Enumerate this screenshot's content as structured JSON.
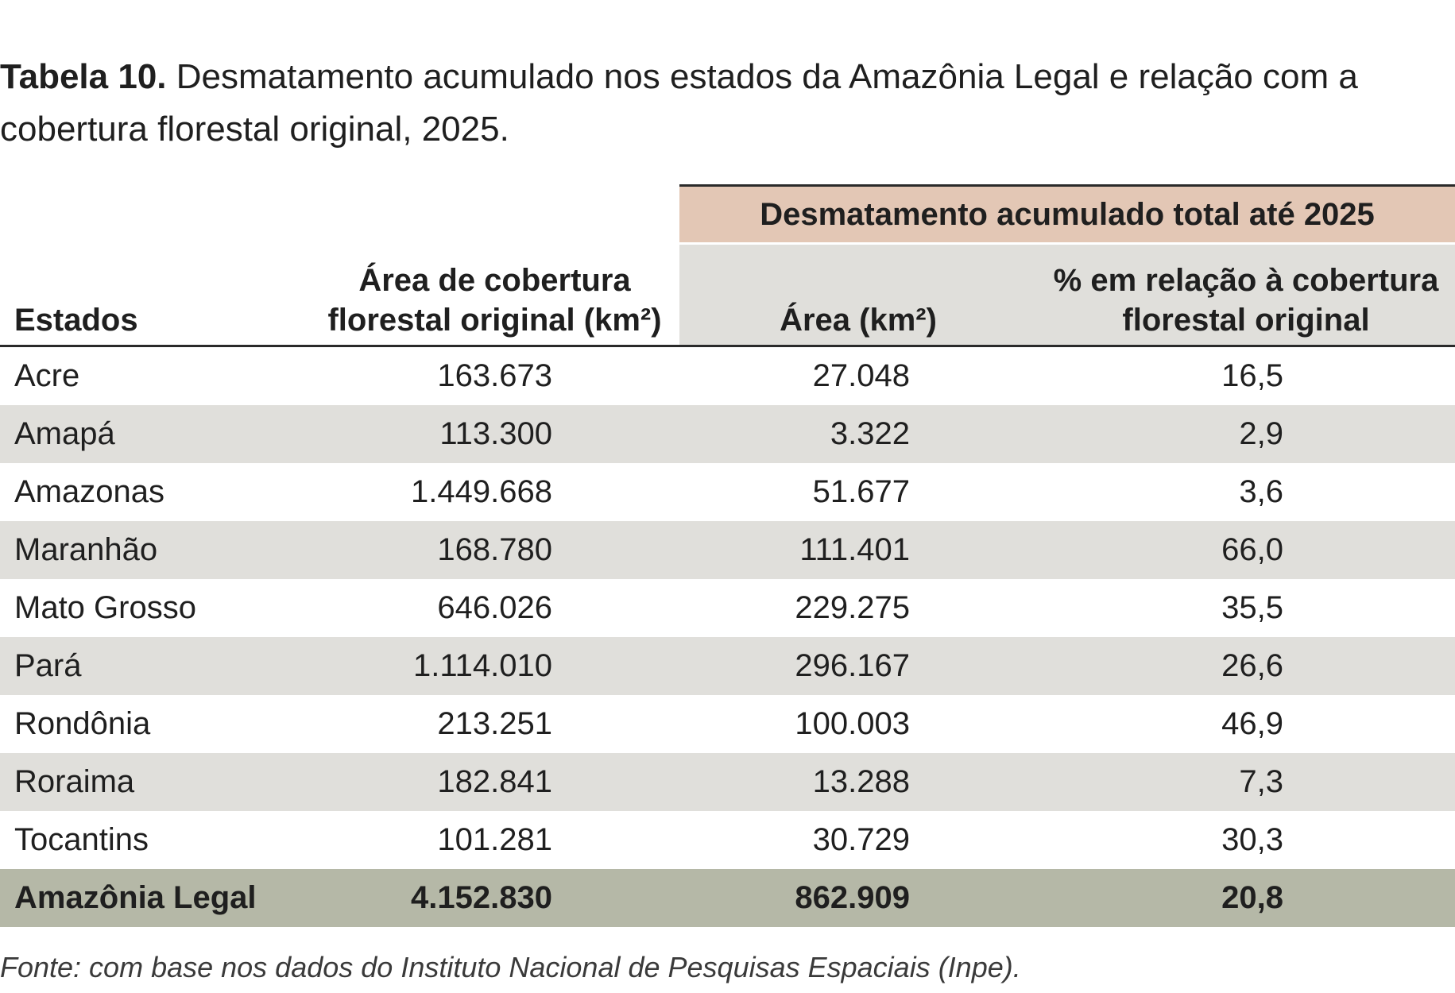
{
  "caption": {
    "label": "Tabela 10.",
    "text": "Desmatamento acumulado nos estados da Amazônia Legal e relação com a cobertura florestal original, 2025."
  },
  "table": {
    "group_header": "Desmatamento acumulado total até 2025",
    "headers": {
      "estados": "Estados",
      "area_original": "Área de cobertura florestal original (km²)",
      "area_desmatada": "Área (km²)",
      "percentual": "% em relação à cobertura florestal original"
    },
    "rows": [
      {
        "estado": "Acre",
        "area_original": "163.673",
        "area_desmatada": "27.048",
        "percentual": "16,5"
      },
      {
        "estado": "Amapá",
        "area_original": "113.300",
        "area_desmatada": "3.322",
        "percentual": "2,9"
      },
      {
        "estado": "Amazonas",
        "area_original": "1.449.668",
        "area_desmatada": "51.677",
        "percentual": "3,6"
      },
      {
        "estado": "Maranhão",
        "area_original": "168.780",
        "area_desmatada": "111.401",
        "percentual": "66,0"
      },
      {
        "estado": "Mato Grosso",
        "area_original": "646.026",
        "area_desmatada": "229.275",
        "percentual": "35,5"
      },
      {
        "estado": "Pará",
        "area_original": "1.114.010",
        "area_desmatada": "296.167",
        "percentual": "26,6"
      },
      {
        "estado": "Rondônia",
        "area_original": "213.251",
        "area_desmatada": "100.003",
        "percentual": "46,9"
      },
      {
        "estado": "Roraima",
        "area_original": "182.841",
        "area_desmatada": "13.288",
        "percentual": "7,3"
      },
      {
        "estado": "Tocantins",
        "area_original": "101.281",
        "area_desmatada": "30.729",
        "percentual": "30,3"
      }
    ],
    "total": {
      "estado": "Amazônia Legal",
      "area_original": "4.152.830",
      "area_desmatada": "862.909",
      "percentual": "20,8"
    }
  },
  "source": "Fonte: com base nos dados do Instituto Nacional de Pesquisas Espaciais (Inpe).",
  "colors": {
    "group_header_bg": "#e3c7b5",
    "stripe_bg": "#e0dfdb",
    "total_bg": "#b5b8a7"
  }
}
